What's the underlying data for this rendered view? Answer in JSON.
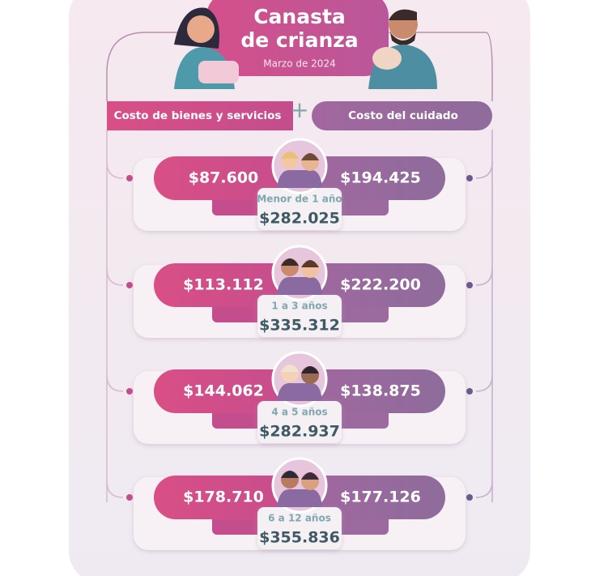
{
  "header": {
    "title_lines": [
      "Canasta",
      "de crianza"
    ],
    "subtitle": "Marzo de 2024"
  },
  "columns": {
    "left": "Costo de bienes y servicios",
    "right": "Costo del cuidado"
  },
  "rows": [
    {
      "label": "Menor de 1 año",
      "bienes": "$87.600",
      "cuidado": "$194.425",
      "total": "$282.025"
    },
    {
      "label": "1 a 3 años",
      "bienes": "$113.112",
      "cuidado": "$222.200",
      "total": "$335.312"
    },
    {
      "label": "4 a 5 años",
      "bienes": "$144.062",
      "cuidado": "$138.875",
      "total": "$282.937"
    },
    {
      "label": "6 a 12 años",
      "bienes": "$178.710",
      "cuidado": "$177.126",
      "total": "$355.836"
    }
  ]
}
